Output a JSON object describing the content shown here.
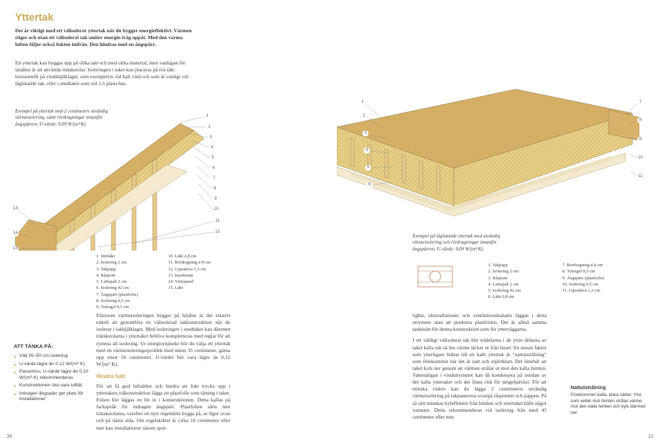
{
  "title": "Yttertak",
  "intro": "Det är viktigt med ett välisolerat yttertak när du bygger energieffektivt. Värmen stiger och utan ett välisolerat tak smiter energin iväg uppåt. Med den varma luften följer också fukten inifrån. Den hindras med en ångspärr.",
  "para1": "Ett yttertak kan byggas upp på olika sätt och med olika material, men vanligast för småhus är att använda trätakstolar.\nIsoleringen i taket kan placeras på två sätt: horisontellt på vindsbjälklaget, som exempelvis vid kall vind och som är vanligt vid låglutande tak, eller i snedtaket som vid 1,5 plans hus.",
  "caption_left": "Exempel på yttertak med 2 centimeters utvändig värmeisolering, samt rördragningar innanför ångspärren. U-värde: 0,09 W/(m²·K)",
  "caption_right": "Exempel på låglutande yttertak med utvändig värmeisolering och rördragningar innanför ångspärren. U-värde: 0,09 W/(m²·K)",
  "legend_left": {
    "col1": [
      "1. Ströläkt",
      "2. Isolering 2 cm",
      "3. Takpapp",
      "4. Råspont",
      "5. Luftspalt 2 cm",
      "6. Isolering 42 cm",
      "7. Ångspärr (plastfolie)",
      "8. Isolering 9,5 cm",
      "9. Träregel 9,5 cm"
    ],
    "col2": [
      "10. Läkt 2,8 cm",
      "11. Rördragning ø 8 cm",
      "12. Gipsskiva 1,3 cm",
      "13. Insektsnät",
      "14. Ytterpanel",
      "15. Läkt"
    ]
  },
  "legend_right": {
    "col1": [
      "1. Takpapp",
      "2. Isolering 2 cm",
      "3. Råspont",
      "4. Luftspalt 2 cm",
      "5. Isolering 42 cm",
      "6. Läkt 2,8 cm"
    ],
    "col2": [
      "7. Rördragning ø 8 cm",
      "8. Träregel 9,5 cm",
      "9. Ångspärr (plastfolie)",
      "10. Isolering 9,5 cm",
      "11. Gipsskiva 1,3 cm"
    ]
  },
  "body_left_1": "Eftersom värmeisoleringen bygger på höjden är det relativt enkelt att genomföra en välisolerad takkonstruktion när du isolerar i takbjälklaget. Med isoleringen i snedtaket kan däremot trätakstolarna i yttertaket behöva kompletteras med reglar för att rymma all isolering. Ur energisynpunkt bör du välja ett yttertak med en värmeisoleringstjocklek med minst 35 centimeter, gärna upp emot 50 centimeter. U-värdet bör vara lägre än 0,12 W/(m²·K).",
  "body_left_sub": "Hindra fukt",
  "body_left_2": "För att få god lufttäthet och hindra att fukt trycks upp i yttertakets träkonstruktion läggs en plastfolie som tätning i taket. Folien bör läggas en bit in i konstruktionen. Detta kallas på fackspråk för indragen ångspärr. Plastfolien sätts mot trätakstolarna, varefter ett nytt regelskikt byggs på, se figur ovan och på nästa sida. Om regelskiktet är cirka 10 centimeter eller mer kan installationer såsom spot-",
  "body_right_1": "lights, elinstallationer och ventilationskanaler läggas i detta utrymme utan att punktera plastfolien. Det är alltså samma tankesätt för denna konstruktion som för ytterväggarna.",
  "body_right_2": "I ett väldigt välisolerat tak blir trädelarna i de yttre delarna av taket kalla när så lite värme läcker ut från huset. En annan faktor som ytterligare bidrar till ett kallt yttertak är \"nattutstrålning\" som förekommer när det är natt och stjärnklart. Det innebär att taket kyls ner genom att värmen strålar ut mot den kalla himlen. Vattenångan i vindutrymmet kan då kondensera på insidan av det kalla yttertaket och det finns risk för mögelpåväxt. För att minska risken kan du lägga 2 centimeters utvändig värmeisolering på takpannorna ovanpå råsponten och pappen. På så sätt minskas kyleffekten från himlen och yttertaket hålls något varmare. Detta rekommenderas vid isolering från med 45 centimeter eller mer.",
  "sidebar_left_title": "ATT TÄNKA PÅ:",
  "sidebar_left_items": [
    "Välj 35–50 cm isolering",
    "U-värde lägre än 0,12 W/(m²·K)",
    "Passivhus: U-värde lägre än 0,10 W/(m²·K) rekommenderas",
    "Konstruktionen ska vara lufttät",
    "Indragen ångspärr ger plats för installationer"
  ],
  "sidebar_right_title": "Nattutstrålning",
  "sidebar_right_text": "Förekommer kalla, klara nätter. Ytor som vetter mot himlen strålar värme mot den kalla himlen och kyls därmed ner.",
  "page_left": "20",
  "page_right": "21",
  "callouts_left": [
    "1",
    "2",
    "3",
    "4",
    "5",
    "6",
    "7",
    "8",
    "9",
    "10",
    "11",
    "12",
    "13",
    "14",
    "15"
  ],
  "callouts_right": [
    "1",
    "2",
    "3",
    "4",
    "5",
    "6",
    "7",
    "8",
    "9",
    "10",
    "11"
  ],
  "diagram_colors": {
    "wood": "#d9b26a",
    "wood_dark": "#b8904a",
    "insulation": "#e8d088",
    "insulation_hatch": "#c4a758",
    "panel": "#e6c98a",
    "outline": "#7a6a45",
    "paper": "#aaaaaa",
    "pipe": "#b87a5a"
  }
}
